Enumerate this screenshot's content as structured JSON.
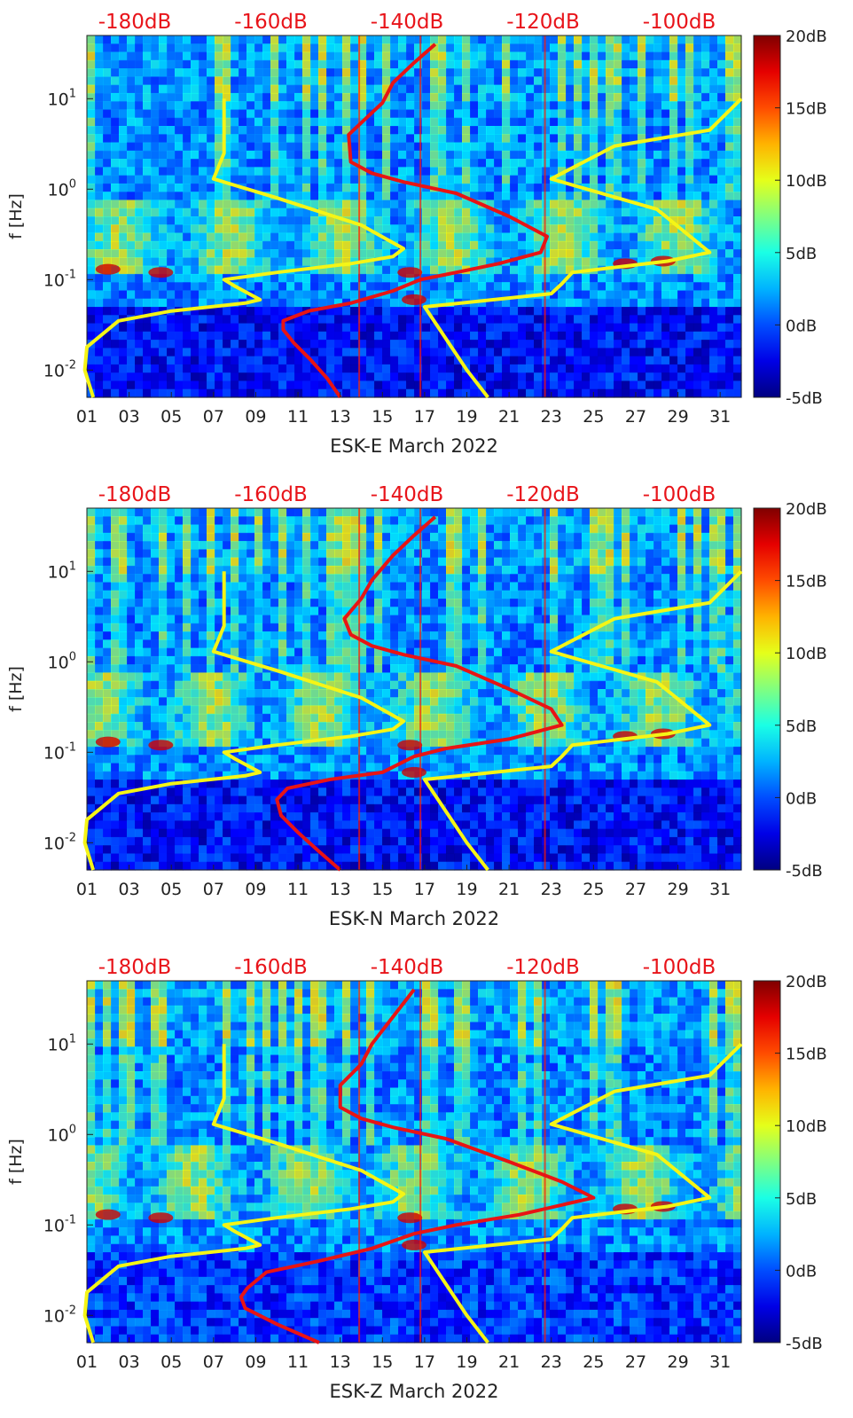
{
  "chart_data": [
    {
      "type": "heatmap",
      "station": "ESK-E",
      "xlabel": "ESK-E March 2022",
      "ylabel": "f [Hz]",
      "x_ticks": [
        "01",
        "03",
        "05",
        "07",
        "09",
        "11",
        "13",
        "15",
        "17",
        "19",
        "21",
        "23",
        "25",
        "27",
        "29",
        "31"
      ],
      "xlim": [
        1,
        32
      ],
      "ylim_hz": [
        0.005,
        50
      ],
      "yscale": "log",
      "y_ticks": [
        "10-2",
        "10-1",
        "100",
        "101"
      ],
      "colorbar": {
        "range_db": [
          -5,
          20
        ],
        "ticks": [
          "20dB",
          "15dB",
          "10dB",
          "5dB",
          "0dB",
          "-5dB"
        ]
      },
      "top_axis_ticks": [
        "-180dB",
        "-160dB",
        "-140dB",
        "-120dB",
        "-100dB"
      ],
      "top_axis_color": "#e8141a",
      "series": [
        {
          "color": "#e81414",
          "values_day_vs_hz": [
            [
              13.0,
              0.005
            ],
            [
              12.4,
              0.008
            ],
            [
              11.6,
              0.013
            ],
            [
              10.8,
              0.02
            ],
            [
              10.3,
              0.028
            ],
            [
              10.3,
              0.035
            ],
            [
              11.5,
              0.045
            ],
            [
              13.5,
              0.055
            ],
            [
              15.5,
              0.075
            ],
            [
              16.8,
              0.1
            ],
            [
              18.5,
              0.12
            ],
            [
              20.5,
              0.15
            ],
            [
              22.5,
              0.2
            ],
            [
              22.8,
              0.3
            ],
            [
              21.0,
              0.5
            ],
            [
              18.5,
              0.9
            ],
            [
              16.0,
              1.2
            ],
            [
              14.5,
              1.5
            ],
            [
              13.5,
              2.0
            ],
            [
              13.4,
              4.0
            ],
            [
              14.2,
              6.0
            ],
            [
              15.0,
              9.0
            ],
            [
              15.5,
              15.0
            ],
            [
              16.5,
              25.0
            ],
            [
              17.5,
              40.0
            ]
          ]
        },
        {
          "color": "#f5f516",
          "values_day_vs_hz": [
            [
              1.3,
              0.005
            ],
            [
              0.9,
              0.01
            ],
            [
              1.0,
              0.018
            ],
            [
              2.5,
              0.035
            ],
            [
              5.0,
              0.045
            ],
            [
              8.5,
              0.055
            ],
            [
              9.2,
              0.06
            ],
            [
              8.0,
              0.085
            ],
            [
              7.5,
              0.1
            ],
            [
              10.0,
              0.12
            ],
            [
              13.5,
              0.15
            ],
            [
              15.5,
              0.18
            ],
            [
              16.0,
              0.22
            ],
            [
              14.0,
              0.4
            ],
            [
              10.0,
              0.8
            ],
            [
              7.0,
              1.3
            ],
            [
              7.5,
              2.5
            ],
            [
              7.5,
              10.0
            ]
          ]
        },
        {
          "color": "#f5f516",
          "values_day_vs_hz": [
            [
              20.0,
              0.005
            ],
            [
              19.0,
              0.01
            ],
            [
              17.0,
              0.05
            ],
            [
              23.0,
              0.07
            ],
            [
              23.5,
              0.09
            ],
            [
              24.0,
              0.12
            ],
            [
              28.5,
              0.16
            ],
            [
              30.5,
              0.2
            ],
            [
              28.0,
              0.6
            ],
            [
              23.0,
              1.3
            ],
            [
              26.0,
              3.0
            ],
            [
              30.5,
              4.5
            ],
            [
              32.0,
              10.0
            ]
          ]
        }
      ]
    },
    {
      "type": "heatmap",
      "station": "ESK-N",
      "xlabel": "ESK-N March 2022",
      "ylabel": "f [Hz]",
      "x_ticks": [
        "01",
        "03",
        "05",
        "07",
        "09",
        "11",
        "13",
        "15",
        "17",
        "19",
        "21",
        "23",
        "25",
        "27",
        "29",
        "31"
      ],
      "xlim": [
        1,
        32
      ],
      "ylim_hz": [
        0.005,
        50
      ],
      "yscale": "log",
      "y_ticks": [
        "10-2",
        "10-1",
        "100",
        "101"
      ],
      "colorbar": {
        "range_db": [
          -5,
          20
        ],
        "ticks": [
          "20dB",
          "15dB",
          "10dB",
          "5dB",
          "0dB",
          "-5dB"
        ]
      },
      "top_axis_ticks": [
        "-180dB",
        "-160dB",
        "-140dB",
        "-120dB",
        "-100dB"
      ],
      "top_axis_color": "#e8141a",
      "series": [
        {
          "color": "#e81414",
          "values_day_vs_hz": [
            [
              13.0,
              0.005
            ],
            [
              12.0,
              0.008
            ],
            [
              11.0,
              0.013
            ],
            [
              10.2,
              0.02
            ],
            [
              10.0,
              0.03
            ],
            [
              10.5,
              0.04
            ],
            [
              12.5,
              0.05
            ],
            [
              15.0,
              0.06
            ],
            [
              16.5,
              0.09
            ],
            [
              18.0,
              0.11
            ],
            [
              21.0,
              0.14
            ],
            [
              23.5,
              0.2
            ],
            [
              23.0,
              0.3
            ],
            [
              21.0,
              0.5
            ],
            [
              18.5,
              0.9
            ],
            [
              16.0,
              1.2
            ],
            [
              14.5,
              1.5
            ],
            [
              13.5,
              2.0
            ],
            [
              13.2,
              3.0
            ],
            [
              14.0,
              5.0
            ],
            [
              14.5,
              8.0
            ],
            [
              15.5,
              15.0
            ],
            [
              16.5,
              25.0
            ],
            [
              17.5,
              40.0
            ]
          ]
        },
        {
          "color": "#f5f516",
          "values_day_vs_hz": [
            [
              1.3,
              0.005
            ],
            [
              0.9,
              0.01
            ],
            [
              1.0,
              0.018
            ],
            [
              2.5,
              0.035
            ],
            [
              5.0,
              0.045
            ],
            [
              8.5,
              0.055
            ],
            [
              9.2,
              0.06
            ],
            [
              8.0,
              0.085
            ],
            [
              7.5,
              0.1
            ],
            [
              10.0,
              0.12
            ],
            [
              13.5,
              0.15
            ],
            [
              15.5,
              0.18
            ],
            [
              16.0,
              0.22
            ],
            [
              14.0,
              0.4
            ],
            [
              10.0,
              0.8
            ],
            [
              7.0,
              1.3
            ],
            [
              7.5,
              2.5
            ],
            [
              7.5,
              10.0
            ]
          ]
        },
        {
          "color": "#f5f516",
          "values_day_vs_hz": [
            [
              20.0,
              0.005
            ],
            [
              19.0,
              0.01
            ],
            [
              17.0,
              0.05
            ],
            [
              23.0,
              0.07
            ],
            [
              23.5,
              0.09
            ],
            [
              24.0,
              0.12
            ],
            [
              28.5,
              0.16
            ],
            [
              30.5,
              0.2
            ],
            [
              28.0,
              0.6
            ],
            [
              23.0,
              1.3
            ],
            [
              26.0,
              3.0
            ],
            [
              30.5,
              4.5
            ],
            [
              32.0,
              10.0
            ]
          ]
        }
      ]
    },
    {
      "type": "heatmap",
      "station": "ESK-Z",
      "xlabel": "ESK-Z March 2022",
      "ylabel": "f [Hz]",
      "x_ticks": [
        "01",
        "03",
        "05",
        "07",
        "09",
        "11",
        "13",
        "15",
        "17",
        "19",
        "21",
        "23",
        "25",
        "27",
        "29",
        "31"
      ],
      "xlim": [
        1,
        32
      ],
      "ylim_hz": [
        0.005,
        50
      ],
      "yscale": "log",
      "y_ticks": [
        "10-2",
        "10-1",
        "100",
        "101"
      ],
      "colorbar": {
        "range_db": [
          -5,
          20
        ],
        "ticks": [
          "20dB",
          "15dB",
          "10dB",
          "5dB",
          "0dB",
          "-5dB"
        ]
      },
      "top_axis_ticks": [
        "-180dB",
        "-160dB",
        "-140dB",
        "-120dB",
        "-100dB"
      ],
      "top_axis_color": "#e8141a",
      "series": [
        {
          "color": "#e81414",
          "values_day_vs_hz": [
            [
              12.0,
              0.005
            ],
            [
              10.0,
              0.008
            ],
            [
              8.5,
              0.012
            ],
            [
              8.3,
              0.016
            ],
            [
              8.6,
              0.02
            ],
            [
              9.5,
              0.03
            ],
            [
              12.0,
              0.04
            ],
            [
              14.5,
              0.055
            ],
            [
              16.5,
              0.08
            ],
            [
              18.5,
              0.1
            ],
            [
              21.5,
              0.13
            ],
            [
              25.0,
              0.2
            ],
            [
              23.5,
              0.3
            ],
            [
              21.0,
              0.5
            ],
            [
              18.0,
              0.9
            ],
            [
              15.5,
              1.2
            ],
            [
              14.0,
              1.5
            ],
            [
              13.0,
              2.0
            ],
            [
              13.0,
              3.5
            ],
            [
              14.0,
              6.0
            ],
            [
              14.5,
              10.0
            ],
            [
              15.5,
              20.0
            ],
            [
              16.5,
              40.0
            ]
          ]
        },
        {
          "color": "#f5f516",
          "values_day_vs_hz": [
            [
              1.3,
              0.005
            ],
            [
              0.9,
              0.01
            ],
            [
              1.0,
              0.018
            ],
            [
              2.5,
              0.035
            ],
            [
              5.0,
              0.045
            ],
            [
              8.5,
              0.055
            ],
            [
              9.2,
              0.06
            ],
            [
              8.0,
              0.085
            ],
            [
              7.5,
              0.1
            ],
            [
              10.0,
              0.12
            ],
            [
              13.5,
              0.15
            ],
            [
              15.5,
              0.18
            ],
            [
              16.0,
              0.22
            ],
            [
              14.0,
              0.4
            ],
            [
              10.0,
              0.8
            ],
            [
              7.0,
              1.3
            ],
            [
              7.5,
              2.5
            ],
            [
              7.5,
              10.0
            ]
          ]
        },
        {
          "color": "#f5f516",
          "values_day_vs_hz": [
            [
              20.0,
              0.005
            ],
            [
              19.0,
              0.01
            ],
            [
              17.0,
              0.05
            ],
            [
              23.0,
              0.07
            ],
            [
              23.5,
              0.09
            ],
            [
              24.0,
              0.12
            ],
            [
              28.5,
              0.16
            ],
            [
              30.5,
              0.2
            ],
            [
              28.0,
              0.6
            ],
            [
              23.0,
              1.3
            ],
            [
              26.0,
              3.0
            ],
            [
              30.5,
              4.5
            ],
            [
              32.0,
              10.0
            ]
          ]
        }
      ]
    }
  ]
}
